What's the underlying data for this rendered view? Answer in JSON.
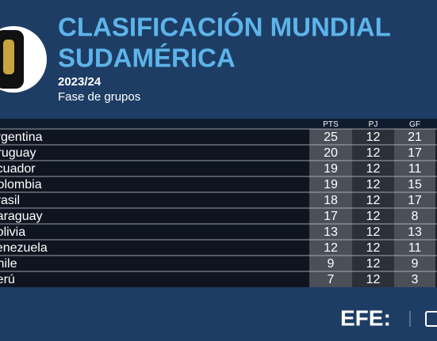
{
  "header": {
    "title_line1": "CLASIFICACIÓN MUNDIAL",
    "title_line2": "SUDAMÉRICA",
    "season": "2023/24",
    "phase": "Fase de grupos"
  },
  "table": {
    "columns": [
      "PTS",
      "PJ",
      "GF"
    ],
    "rows": [
      [
        "Argentina",
        25,
        12,
        21
      ],
      [
        "Uruguay",
        20,
        12,
        17
      ],
      [
        "Ecuador",
        19,
        12,
        11
      ],
      [
        "Colombia",
        19,
        12,
        15
      ],
      [
        "Brasil",
        18,
        12,
        17
      ],
      [
        "Paraguay",
        17,
        12,
        8
      ],
      [
        "Bolivia",
        13,
        12,
        13
      ],
      [
        "Venezuela",
        12,
        12,
        11
      ],
      [
        "Chile",
        9,
        12,
        9
      ],
      [
        "Perú",
        7,
        12,
        3
      ]
    ]
  },
  "footer": {
    "brand": "EFE:"
  }
}
